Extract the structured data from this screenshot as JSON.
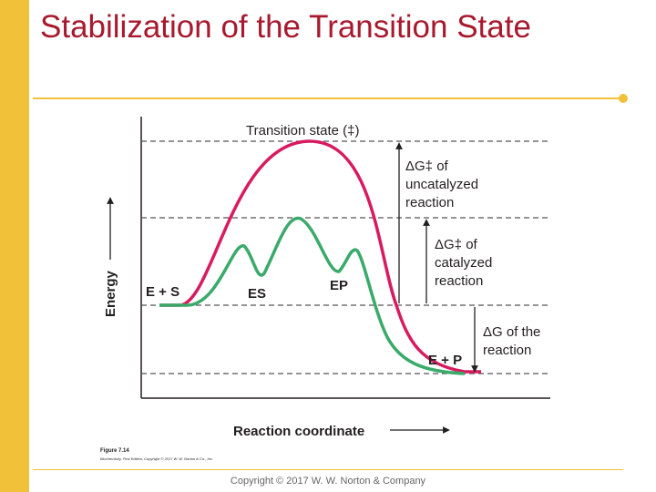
{
  "slide": {
    "title": "Stabilization of the Transition State",
    "copyright": "Copyright © 2017 W. W. Norton & Company"
  },
  "figure": {
    "transition_state_label": "Transition state (‡)",
    "uncatalyzed": [
      "ΔG‡ of",
      "uncatalyzed",
      "reaction"
    ],
    "catalyzed": [
      "ΔG‡ of",
      "catalyzed",
      "reaction"
    ],
    "delta_g": [
      "ΔG of the",
      "reaction"
    ],
    "states": {
      "es_start": "E + S",
      "es": "ES",
      "ep": "EP",
      "ep_end": "E + P"
    },
    "y_axis_label": "Energy",
    "x_axis_label": "Reaction coordinate",
    "caption_number": "Figure 7.14",
    "caption_source": "Biochemistry, First Edition, Copyright © 2017 W. W. Norton & Co., Inc."
  },
  "colors": {
    "uncatalyzed": "#d81b60",
    "catalyzed": "#3aaa6a",
    "accent": "#f2c13a",
    "title": "#a8192e"
  }
}
